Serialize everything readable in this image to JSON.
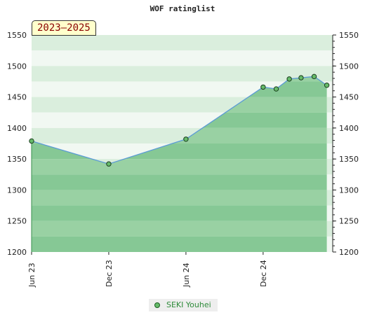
{
  "chart_data": {
    "type": "area",
    "title": "WOF ratinglist",
    "period_label": "2023–2025",
    "xlabel": "",
    "ylabel": "",
    "ylim": [
      1200,
      1550
    ],
    "yticks": [
      1200,
      1250,
      1300,
      1350,
      1400,
      1450,
      1500,
      1550
    ],
    "xticks": [
      {
        "label": "Jun 23",
        "date": "2023-06-01"
      },
      {
        "label": "Dec 23",
        "date": "2023-12-01"
      },
      {
        "label": "Jun 24",
        "date": "2024-06-01"
      },
      {
        "label": "Dec 24",
        "date": "2024-12-01"
      }
    ],
    "xlim": [
      "2023-06-01",
      "2025-05-15"
    ],
    "grid": true,
    "legend_position": "bottom-center",
    "series": [
      {
        "name": "SEKI Youhei",
        "color": "#66bb6a",
        "line_color": "#5b9bd5",
        "points": [
          {
            "x": "2023-06-01",
            "y": 1379
          },
          {
            "x": "2023-12-01",
            "y": 1342
          },
          {
            "x": "2024-06-01",
            "y": 1382
          },
          {
            "x": "2024-12-01",
            "y": 1466
          },
          {
            "x": "2025-01-01",
            "y": 1463
          },
          {
            "x": "2025-02-01",
            "y": 1479
          },
          {
            "x": "2025-03-01",
            "y": 1481
          },
          {
            "x": "2025-04-01",
            "y": 1483
          },
          {
            "x": "2025-05-01",
            "y": 1469
          }
        ]
      }
    ]
  }
}
